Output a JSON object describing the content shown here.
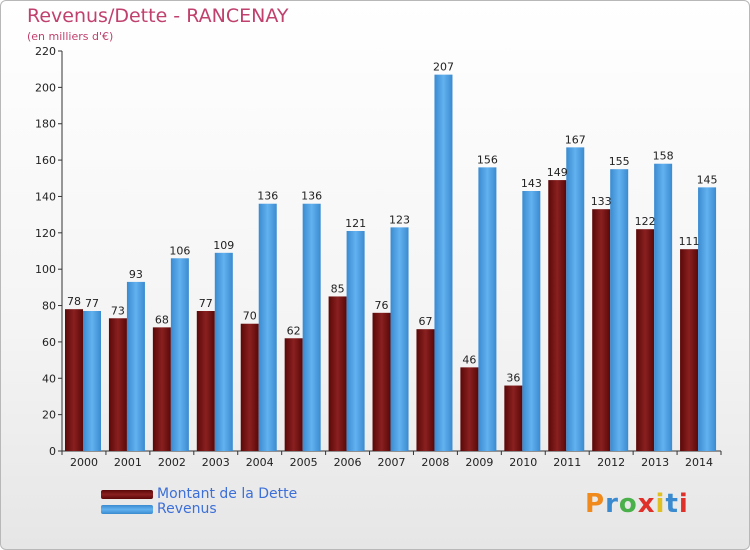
{
  "header": {
    "title": "Revenus/Dette - RANCENAY",
    "subtitle": "(en milliers d'€)"
  },
  "chart_data": {
    "type": "bar",
    "title": "Revenus/Dette - RANCENAY",
    "subtitle": "(en milliers d'€)",
    "xlabel": "",
    "ylabel": "",
    "categories": [
      "2000",
      "2001",
      "2002",
      "2003",
      "2004",
      "2005",
      "2006",
      "2007",
      "2008",
      "2009",
      "2010",
      "2011",
      "2012",
      "2013",
      "2014"
    ],
    "series": [
      {
        "name": "Montant de la Dette",
        "color": "#7a1010",
        "values": [
          78,
          73,
          68,
          77,
          70,
          62,
          85,
          76,
          67,
          46,
          36,
          149,
          133,
          122,
          111
        ]
      },
      {
        "name": "Revenus",
        "color": "#4ea0e4",
        "values": [
          77,
          93,
          106,
          109,
          136,
          136,
          121,
          123,
          207,
          156,
          143,
          167,
          155,
          158,
          145
        ]
      }
    ],
    "ylim": [
      0,
      220
    ],
    "yticks": [
      0,
      20,
      40,
      60,
      80,
      100,
      120,
      140,
      160,
      180,
      200,
      220
    ],
    "grid": false,
    "legend": "bottom-left"
  },
  "logo": {
    "text": "Proxiti"
  }
}
